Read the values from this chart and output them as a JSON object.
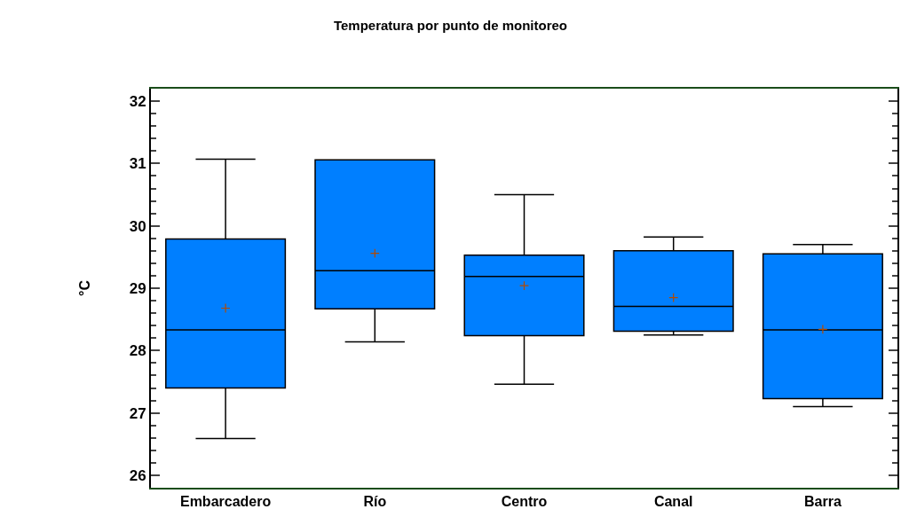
{
  "chart_data": {
    "type": "box",
    "title": "Temperatura por punto de monitoreo",
    "ylabel": "°C",
    "categories": [
      "Embarcadero",
      "Río",
      "Centro",
      "Canal",
      "Barra"
    ],
    "color": "#007fff",
    "boxes": [
      {
        "low": 26.59,
        "q1": 27.4,
        "median": 28.33,
        "q3": 29.79,
        "high": 31.07,
        "mean": 28.68
      },
      {
        "low": 28.14,
        "q1": 28.67,
        "median": 29.28,
        "q3": 31.06,
        "high": 31.06,
        "mean": 29.56
      },
      {
        "low": 27.46,
        "q1": 28.24,
        "median": 29.19,
        "q3": 29.53,
        "high": 30.5,
        "mean": 29.04
      },
      {
        "low": 28.25,
        "q1": 28.31,
        "median": 28.71,
        "q3": 29.6,
        "high": 29.82,
        "mean": 28.85
      },
      {
        "low": 27.1,
        "q1": 27.23,
        "median": 28.33,
        "q3": 29.55,
        "high": 29.7,
        "mean": 28.34
      }
    ],
    "ylim": [
      25.8,
      32.2
    ],
    "yticks": [
      26,
      27,
      28,
      29,
      30,
      31,
      32
    ]
  }
}
